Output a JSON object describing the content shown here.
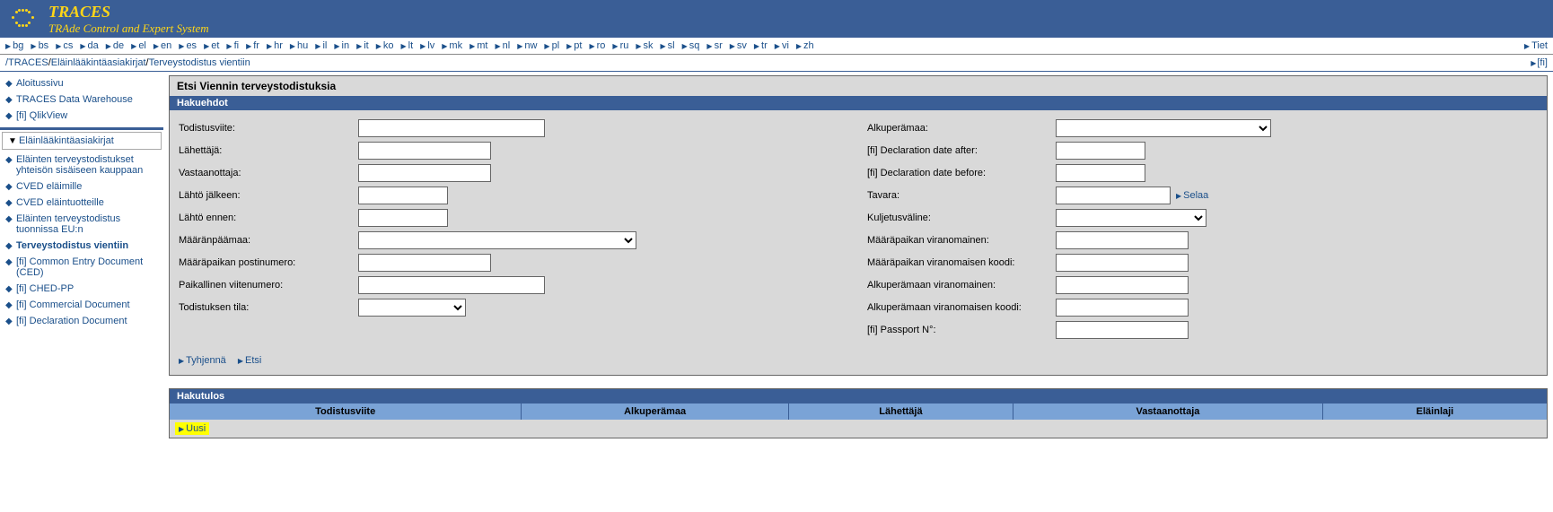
{
  "header": {
    "title": "TRACES",
    "subtitle": "TRAde Control and Expert System"
  },
  "languages": [
    "bg",
    "bs",
    "cs",
    "da",
    "de",
    "el",
    "en",
    "es",
    "et",
    "fi",
    "fr",
    "hr",
    "hu",
    "il",
    "in",
    "it",
    "ko",
    "lt",
    "lv",
    "mk",
    "mt",
    "nl",
    "nw",
    "pl",
    "pt",
    "ro",
    "ru",
    "sk",
    "sl",
    "sq",
    "sr",
    "sv",
    "tr",
    "vi",
    "zh"
  ],
  "topright_link": "Tiet",
  "breadcrumb": {
    "root": "/TRACES",
    "part1": "Eläinlääkintäasiakirjat",
    "part2": "Terveystodistus vientiin",
    "right": "[fi]"
  },
  "sidebar": {
    "top": [
      {
        "label": "Aloitussivu"
      },
      {
        "label": "TRACES Data Warehouse"
      },
      {
        "label": "[fi] QlikView"
      }
    ],
    "section": "Eläinlääkintäasiakirjat",
    "items": [
      {
        "label": "Eläinten terveystodistukset yhteisön sisäiseen kauppaan"
      },
      {
        "label": "CVED eläimille"
      },
      {
        "label": "CVED eläintuotteille"
      },
      {
        "label": "Eläinten terveystodistus tuonnissa EU:n"
      },
      {
        "label": "Terveystodistus vientiin",
        "active": true
      },
      {
        "label": "[fi] Common Entry Document (CED)"
      },
      {
        "label": "[fi] CHED-PP"
      },
      {
        "label": "[fi] Commercial Document"
      },
      {
        "label": "[fi] Declaration Document"
      }
    ]
  },
  "form": {
    "title": "Etsi Viennin terveystodistuksia",
    "band": "Hakuehdot",
    "left": {
      "todistusviite": "Todistusviite:",
      "lahettaja": "Lähettäjä:",
      "vastaanottaja": "Vastaanottaja:",
      "lahto_jalkeen": "Lähtö jälkeen:",
      "lahto_ennen": "Lähtö ennen:",
      "maaranpaamaa": "Määränpäämaa:",
      "maarapaikan_postinumero": "Määräpaikan postinumero:",
      "paikallinen_viitenumero": "Paikallinen viitenumero:",
      "todistuksen_tila": "Todistuksen tila:"
    },
    "right": {
      "alkuperamaa": "Alkuperämaa:",
      "decl_after": "[fi] Declaration date after:",
      "decl_before": "[fi] Declaration date before:",
      "tavara": "Tavara:",
      "selaa": "Selaa",
      "kuljetusvaline": "Kuljetusväline:",
      "maarapaikan_viranomainen": "Määräpaikan viranomainen:",
      "maarapaikan_viranomaisen_koodi": "Määräpaikan viranomaisen koodi:",
      "alkuperamaan_viranomainen": "Alkuperämaan viranomainen:",
      "alkuperamaan_viranomaisen_koodi": "Alkuperämaan viranomaisen koodi:",
      "passport": "[fi] Passport N°:"
    },
    "actions": {
      "tyhjenna": "Tyhjennä",
      "etsi": "Etsi"
    }
  },
  "results": {
    "band": "Hakutulos",
    "cols": {
      "c1": "Todistusviite",
      "c2": "Alkuperämaa",
      "c3": "Lähettäjä",
      "c4": "Vastaanottaja",
      "c5": "Eläinlaji"
    },
    "uusi": "Uusi"
  }
}
